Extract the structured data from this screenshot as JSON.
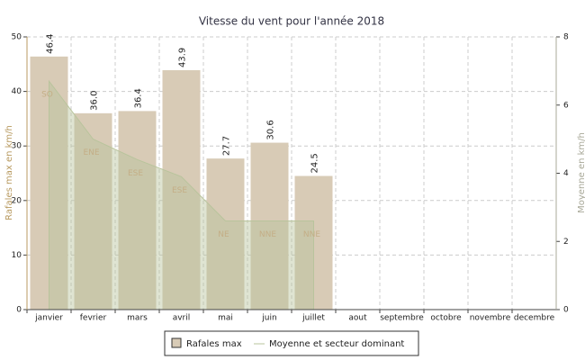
{
  "chart_data": {
    "type": "bar",
    "title": "Vitesse du vent pour l'année 2018",
    "ylabel": "Rafales max en km/h",
    "y2label": "Moyenne en km/h",
    "categories": [
      "janvier",
      "fevrier",
      "mars",
      "avril",
      "mai",
      "juin",
      "juillet",
      "aout",
      "septembre",
      "octobre",
      "novembre",
      "decembre"
    ],
    "series": [
      {
        "name": "Rafales max",
        "type": "bar",
        "color": "#d8cbb6",
        "values": [
          46.4,
          36,
          36.4,
          43.9,
          27.7,
          30.6,
          24.5,
          null,
          null,
          null,
          null,
          null
        ],
        "value_labels": [
          "46.4",
          "36.0",
          "36.4",
          "43.9",
          "27.7",
          "30.6",
          "24.5",
          null,
          null,
          null,
          null,
          null
        ]
      },
      {
        "name": "Moyenne et secteur dominant",
        "type": "area",
        "axis": "y2",
        "color": "#b9c49c",
        "values": [
          6.7,
          5.0,
          4.4,
          3.9,
          2.6,
          2.6,
          2.6,
          null,
          null,
          null,
          null,
          null
        ],
        "sectors": [
          "SO",
          "ENE",
          "ESE",
          "ESE",
          "NE",
          "NNE",
          "NNE",
          null,
          null,
          null,
          null,
          null
        ]
      }
    ],
    "ylim": [
      0,
      50
    ],
    "yticks": [
      0,
      10,
      20,
      30,
      40,
      50
    ],
    "y2lim": [
      0,
      8
    ],
    "y2ticks": [
      0,
      2,
      4,
      6,
      8
    ],
    "grid": true
  }
}
